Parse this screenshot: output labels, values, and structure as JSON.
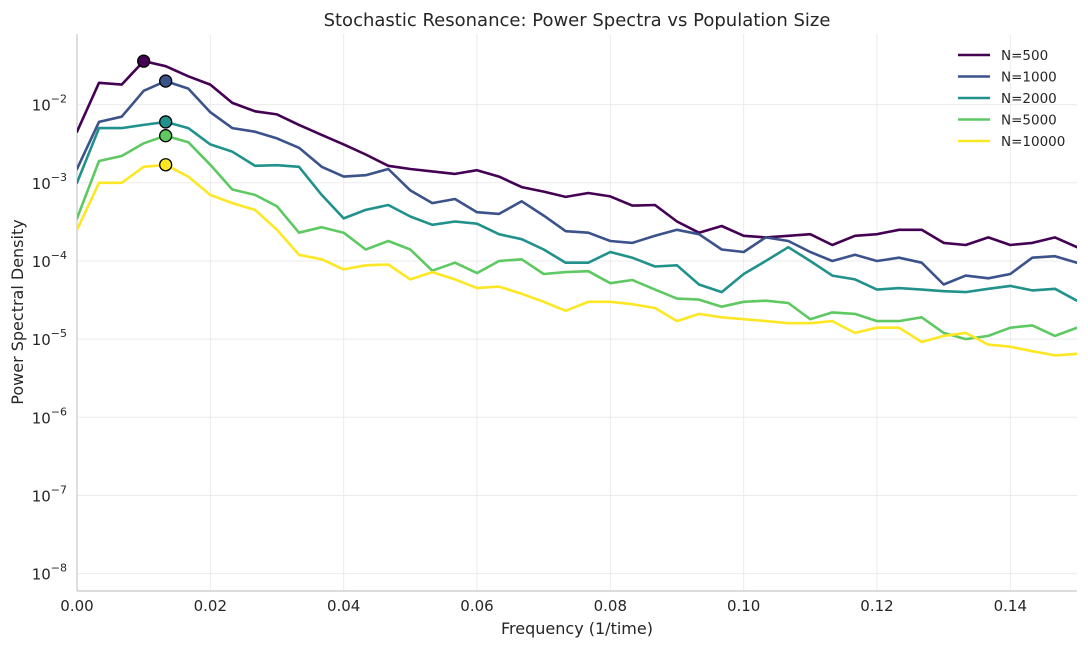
{
  "chart_data": {
    "type": "line",
    "title": "Stochastic Resonance: Power Spectra vs Population Size",
    "xlabel": "Frequency (1/time)",
    "ylabel": "Power Spectral Density",
    "xlim": [
      0,
      0.15
    ],
    "ylim": [
      6e-09,
      0.08
    ],
    "y_scale": "log",
    "x_ticks": [
      0.0,
      0.02,
      0.04,
      0.06,
      0.08,
      0.1,
      0.12,
      0.14
    ],
    "x_tick_labels": [
      "0.00",
      "0.02",
      "0.04",
      "0.06",
      "0.08",
      "0.10",
      "0.12",
      "0.14"
    ],
    "y_ticks": [
      {
        "value": 1e-08,
        "base": "10",
        "exp": "−8"
      },
      {
        "value": 1e-07,
        "base": "10",
        "exp": "−7"
      },
      {
        "value": 1e-06,
        "base": "10",
        "exp": "−6"
      },
      {
        "value": 1e-05,
        "base": "10",
        "exp": "−5"
      },
      {
        "value": 0.0001,
        "base": "10",
        "exp": "−4"
      },
      {
        "value": 0.001,
        "base": "10",
        "exp": "−3"
      },
      {
        "value": 0.01,
        "base": "10",
        "exp": "−2"
      }
    ],
    "grid": true,
    "legend_position": "top-right",
    "x": [
      0.0,
      0.0033,
      0.0067,
      0.01,
      0.0133,
      0.0167,
      0.02,
      0.0233,
      0.0267,
      0.03,
      0.0333,
      0.0367,
      0.04,
      0.0433,
      0.0467,
      0.05,
      0.0533,
      0.0567,
      0.06,
      0.0633,
      0.0667,
      0.07,
      0.0733,
      0.0767,
      0.08,
      0.0833,
      0.0867,
      0.09,
      0.0933,
      0.0967,
      0.1,
      0.1033,
      0.1067,
      0.11,
      0.1133,
      0.1167,
      0.12,
      0.1233,
      0.1267,
      0.13,
      0.1333,
      0.1367,
      0.14,
      0.1433,
      0.1467,
      0.15
    ],
    "series": [
      {
        "name": "N=500",
        "color": "#440154",
        "values": [
          0.0045,
          0.019,
          0.018,
          0.036,
          0.031,
          0.023,
          0.018,
          0.0105,
          0.0082,
          0.0075,
          0.0055,
          0.0041,
          0.0031,
          0.0023,
          0.00165,
          0.0015,
          0.0014,
          0.0013,
          0.00145,
          0.0012,
          0.00088,
          0.00077,
          0.00066,
          0.00074,
          0.00067,
          0.00051,
          0.00052,
          0.00032,
          0.00023,
          0.00028,
          0.00021,
          0.0002,
          0.00021,
          0.00022,
          0.00016,
          0.00021,
          0.00022,
          0.00025,
          0.00025,
          0.00017,
          0.00016,
          0.0002,
          0.00016,
          0.00017,
          0.0002,
          0.00015
        ],
        "peak": {
          "x": 0.01,
          "y": 0.036
        }
      },
      {
        "name": "N=1000",
        "color": "#3b528b",
        "values": [
          0.0015,
          0.006,
          0.007,
          0.015,
          0.02,
          0.016,
          0.008,
          0.005,
          0.0045,
          0.0037,
          0.0028,
          0.0016,
          0.0012,
          0.00125,
          0.0015,
          0.0008,
          0.00055,
          0.00062,
          0.00042,
          0.0004,
          0.00058,
          0.00038,
          0.00024,
          0.00023,
          0.00018,
          0.00017,
          0.00021,
          0.00025,
          0.00022,
          0.00014,
          0.00013,
          0.0002,
          0.00018,
          0.00013,
          0.0001,
          0.00012,
          0.0001,
          0.00011,
          9.5e-05,
          5e-05,
          6.5e-05,
          6e-05,
          6.8e-05,
          0.00011,
          0.000115,
          9.5e-05
        ],
        "peak": {
          "x": 0.0133,
          "y": 0.02
        }
      },
      {
        "name": "N=2000",
        "color": "#21918c",
        "values": [
          0.001,
          0.005,
          0.005,
          0.0055,
          0.006,
          0.005,
          0.0031,
          0.0025,
          0.00165,
          0.00168,
          0.0016,
          0.0007,
          0.00035,
          0.00045,
          0.00052,
          0.00037,
          0.00029,
          0.00032,
          0.0003,
          0.00022,
          0.00019,
          0.00014,
          9.5e-05,
          9.5e-05,
          0.00013,
          0.00011,
          8.5e-05,
          8.8e-05,
          5e-05,
          4e-05,
          6.8e-05,
          0.0001,
          0.00015,
          0.0001,
          6.5e-05,
          5.8e-05,
          4.3e-05,
          4.5e-05,
          4.3e-05,
          4.1e-05,
          4e-05,
          4.4e-05,
          4.8e-05,
          4.2e-05,
          4.4e-05,
          3.1e-05
        ],
        "peak": {
          "x": 0.0133,
          "y": 0.006
        }
      },
      {
        "name": "N=5000",
        "color": "#5ec962",
        "values": [
          0.00035,
          0.0019,
          0.0022,
          0.0032,
          0.004,
          0.0033,
          0.0017,
          0.00082,
          0.0007,
          0.0005,
          0.00023,
          0.00027,
          0.00023,
          0.00014,
          0.00018,
          0.00014,
          7.5e-05,
          9.5e-05,
          7e-05,
          0.0001,
          0.000105,
          6.8e-05,
          7.2e-05,
          7.4e-05,
          5.2e-05,
          5.7e-05,
          4.3e-05,
          3.3e-05,
          3.2e-05,
          2.6e-05,
          3e-05,
          3.1e-05,
          2.9e-05,
          1.8e-05,
          2.2e-05,
          2.1e-05,
          1.7e-05,
          1.7e-05,
          1.9e-05,
          1.2e-05,
          1e-05,
          1.1e-05,
          1.4e-05,
          1.5e-05,
          1.1e-05,
          1.4e-05
        ],
        "peak": {
          "x": 0.0133,
          "y": 0.004
        }
      },
      {
        "name": "N=10000",
        "color": "#fde725",
        "values": [
          0.00025,
          0.001,
          0.001,
          0.0016,
          0.0017,
          0.0012,
          0.0007,
          0.00055,
          0.00045,
          0.00025,
          0.00012,
          0.000105,
          7.8e-05,
          8.8e-05,
          9e-05,
          5.8e-05,
          7.2e-05,
          5.8e-05,
          4.5e-05,
          4.7e-05,
          3.8e-05,
          3e-05,
          2.3e-05,
          3e-05,
          3e-05,
          2.8e-05,
          2.5e-05,
          1.7e-05,
          2.1e-05,
          1.9e-05,
          1.8e-05,
          1.7e-05,
          1.6e-05,
          1.6e-05,
          1.7e-05,
          1.2e-05,
          1.4e-05,
          1.4e-05,
          9.2e-06,
          1.1e-05,
          1.2e-05,
          8.5e-06,
          8e-06,
          7e-06,
          6.2e-06,
          6.5e-06
        ],
        "peak": {
          "x": 0.0133,
          "y": 0.0017
        }
      }
    ]
  }
}
